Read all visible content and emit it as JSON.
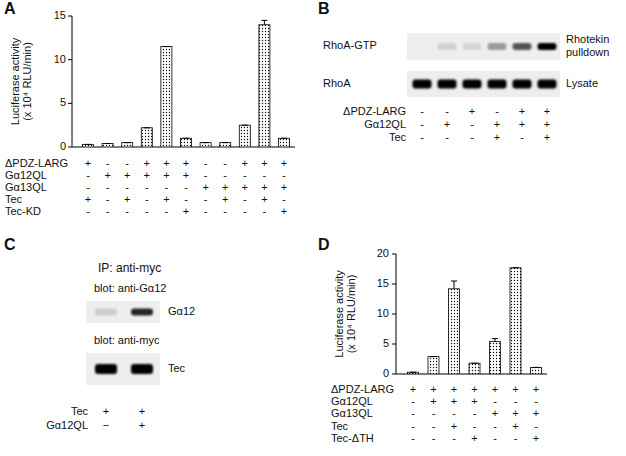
{
  "panel_labels": [
    "A",
    "B",
    "C",
    "D"
  ],
  "chart_data": [
    {
      "type": "bar",
      "ylim": [
        0,
        15
      ],
      "yticks": [
        0,
        5,
        10,
        15
      ],
      "y_label": [
        "Luciferase activity",
        "(x 10⁴ RLU/min)"
      ],
      "conditions": [
        {
          "label": "ΔPDZ-LARG",
          "values": [
            "+",
            "-",
            "-",
            "+",
            "+",
            "+",
            "-",
            "-",
            "+",
            "+",
            "+"
          ]
        },
        {
          "label": "Gα12QL",
          "values": [
            "-",
            "+",
            "+",
            "+",
            "+",
            "+",
            "-",
            "-",
            "-",
            "-",
            "-"
          ]
        },
        {
          "label": "Gα13QL",
          "values": [
            "-",
            "-",
            "-",
            "-",
            "-",
            "-",
            "+",
            "+",
            "+",
            "+",
            "+"
          ]
        },
        {
          "label": "Tec",
          "values": [
            "+",
            "-",
            "+",
            "-",
            "+",
            "-",
            "-",
            "+",
            "-",
            "+",
            "-"
          ]
        },
        {
          "label": "Tec-KD",
          "values": [
            "-",
            "-",
            "-",
            "-",
            "-",
            "+",
            "-",
            "-",
            "-",
            "-",
            "+"
          ]
        }
      ],
      "series": [
        {
          "color": "#000000",
          "values": [
            0.3,
            0.4,
            0.5,
            2.2,
            11.5,
            1.0,
            0.5,
            0.5,
            2.5,
            14.0,
            1.0
          ],
          "errors": [
            0,
            0,
            0,
            0,
            0,
            0,
            0,
            0,
            0,
            0.5,
            0
          ]
        }
      ]
    },
    {
      "type": "bar",
      "ylim": [
        0,
        20
      ],
      "yticks": [
        0,
        5,
        10,
        15,
        20
      ],
      "y_label": [
        "Luciferase activity",
        "(x 10⁴ RLU/min)"
      ],
      "conditions": [
        {
          "label": "ΔPDZ-LARG",
          "values": [
            "+",
            "+",
            "+",
            "+",
            "+",
            "+",
            "+"
          ]
        },
        {
          "label": "Gα12QL",
          "values": [
            "-",
            "+",
            "+",
            "+",
            "-",
            "-",
            "-"
          ]
        },
        {
          "label": "Gα13QL",
          "values": [
            "-",
            "-",
            "-",
            "-",
            "+",
            "+",
            "+"
          ]
        },
        {
          "label": "Tec",
          "values": [
            "-",
            "-",
            "+",
            "-",
            "-",
            "+",
            "-"
          ]
        },
        {
          "label": "Tec-ΔTH",
          "values": [
            "-",
            "-",
            "-",
            "+",
            "-",
            "-",
            "+"
          ]
        }
      ],
      "series": [
        {
          "color": "#000000",
          "values": [
            0.3,
            2.9,
            14.2,
            1.8,
            5.4,
            17.7,
            1.1
          ],
          "errors": [
            0,
            0,
            1.3,
            0,
            0.5,
            0,
            0
          ]
        }
      ]
    }
  ],
  "blots": [
    {
      "rows": [
        {
          "left_label": "RhoA-GTP",
          "right_label": [
            "Rhotekin",
            "pulldown"
          ],
          "intensities": [
            0.0,
            0.12,
            0.1,
            0.35,
            0.65,
            1.0
          ]
        },
        {
          "left_label": "RhoA",
          "right_label": [
            "Lysate"
          ],
          "intensities": [
            1.0,
            1.0,
            1.0,
            1.0,
            1.0,
            1.0
          ]
        }
      ],
      "conditions": [
        {
          "label": "ΔPDZ-LARG",
          "values": [
            "-",
            "-",
            "+",
            "-",
            "+",
            "+"
          ]
        },
        {
          "label": "Gα12QL",
          "values": [
            "-",
            "+",
            "-",
            "+",
            "+",
            "+"
          ]
        },
        {
          "label": "Tec",
          "values": [
            "-",
            "-",
            "-",
            "+",
            "-",
            "+"
          ]
        }
      ]
    },
    {
      "header": "IP: anti-myc",
      "rows": [
        {
          "blot_label": "blot: anti-Gα12",
          "right_label": [
            "Gα12"
          ],
          "intensities": [
            0.15,
            0.85
          ]
        },
        {
          "blot_label": "blot: anti-myc",
          "right_label": [
            "Tec"
          ],
          "intensities": [
            1.0,
            1.0
          ]
        }
      ],
      "conditions": [
        {
          "label": "Tec",
          "values": [
            "+",
            "+"
          ]
        },
        {
          "label": "Gα12QL",
          "values": [
            "−",
            "+"
          ]
        }
      ]
    }
  ]
}
